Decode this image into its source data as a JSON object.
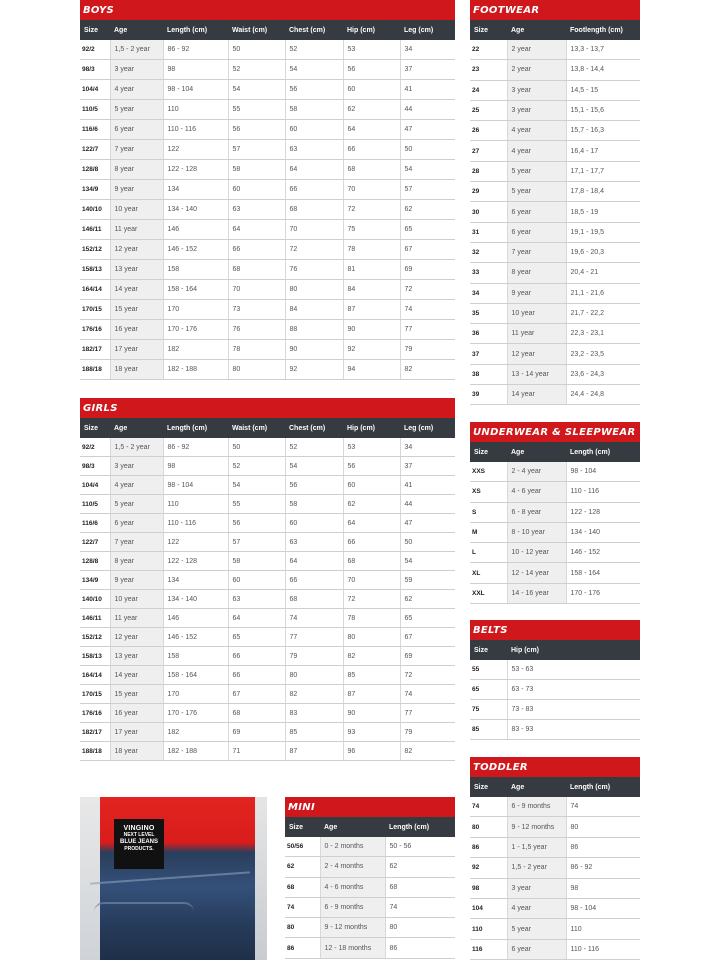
{
  "colors": {
    "title_bar": "#d0171b",
    "header_bar": "#353b40",
    "age_column": "#efefef"
  },
  "tables": {
    "boys": {
      "title": "BOYS",
      "headers": [
        "Size",
        "Age",
        "Length (cm)",
        "Waist (cm)",
        "Chest (cm)",
        "Hip (cm)",
        "Leg (cm)"
      ],
      "rows": [
        [
          "92/2",
          "1,5 - 2 year",
          "86 - 92",
          "50",
          "52",
          "53",
          "34"
        ],
        [
          "98/3",
          "3 year",
          "98",
          "52",
          "54",
          "56",
          "37"
        ],
        [
          "104/4",
          "4 year",
          "98 - 104",
          "54",
          "56",
          "60",
          "41"
        ],
        [
          "110/5",
          "5 year",
          "110",
          "55",
          "58",
          "62",
          "44"
        ],
        [
          "116/6",
          "6 year",
          "110 - 116",
          "56",
          "60",
          "64",
          "47"
        ],
        [
          "122/7",
          "7 year",
          "122",
          "57",
          "63",
          "66",
          "50"
        ],
        [
          "128/8",
          "8 year",
          "122 - 128",
          "58",
          "64",
          "68",
          "54"
        ],
        [
          "134/9",
          "9 year",
          "134",
          "60",
          "66",
          "70",
          "57"
        ],
        [
          "140/10",
          "10 year",
          "134 - 140",
          "63",
          "68",
          "72",
          "62"
        ],
        [
          "146/11",
          "11 year",
          "146",
          "64",
          "70",
          "75",
          "65"
        ],
        [
          "152/12",
          "12 year",
          "146 - 152",
          "66",
          "72",
          "78",
          "67"
        ],
        [
          "158/13",
          "13 year",
          "158",
          "68",
          "76",
          "81",
          "69"
        ],
        [
          "164/14",
          "14 year",
          "158 - 164",
          "70",
          "80",
          "84",
          "72"
        ],
        [
          "170/15",
          "15 year",
          "170",
          "73",
          "84",
          "87",
          "74"
        ],
        [
          "176/16",
          "16 year",
          "170 - 176",
          "76",
          "88",
          "90",
          "77"
        ],
        [
          "182/17",
          "17 year",
          "182",
          "78",
          "90",
          "92",
          "79"
        ],
        [
          "188/18",
          "18 year",
          "182 - 188",
          "80",
          "92",
          "94",
          "82"
        ]
      ]
    },
    "girls": {
      "title": "GIRLS",
      "headers": [
        "Size",
        "Age",
        "Length (cm)",
        "Waist (cm)",
        "Chest (cm)",
        "Hip (cm)",
        "Leg (cm)"
      ],
      "rows": [
        [
          "92/2",
          "1,5 - 2 year",
          "86 - 92",
          "50",
          "52",
          "53",
          "34"
        ],
        [
          "98/3",
          "3 year",
          "98",
          "52",
          "54",
          "56",
          "37"
        ],
        [
          "104/4",
          "4 year",
          "98 - 104",
          "54",
          "56",
          "60",
          "41"
        ],
        [
          "110/5",
          "5 year",
          "110",
          "55",
          "58",
          "62",
          "44"
        ],
        [
          "116/6",
          "6 year",
          "110 - 116",
          "56",
          "60",
          "64",
          "47"
        ],
        [
          "122/7",
          "7 year",
          "122",
          "57",
          "63",
          "66",
          "50"
        ],
        [
          "128/8",
          "8 year",
          "122 - 128",
          "58",
          "64",
          "68",
          "54"
        ],
        [
          "134/9",
          "9 year",
          "134",
          "60",
          "66",
          "70",
          "59"
        ],
        [
          "140/10",
          "10 year",
          "134 - 140",
          "63",
          "68",
          "72",
          "62"
        ],
        [
          "146/11",
          "11 year",
          "146",
          "64",
          "74",
          "78",
          "65"
        ],
        [
          "152/12",
          "12 year",
          "146 - 152",
          "65",
          "77",
          "80",
          "67"
        ],
        [
          "158/13",
          "13 year",
          "158",
          "66",
          "79",
          "82",
          "69"
        ],
        [
          "164/14",
          "14 year",
          "158 - 164",
          "66",
          "80",
          "85",
          "72"
        ],
        [
          "170/15",
          "15 year",
          "170",
          "67",
          "82",
          "87",
          "74"
        ],
        [
          "176/16",
          "16 year",
          "170 - 176",
          "68",
          "83",
          "90",
          "77"
        ],
        [
          "182/17",
          "17 year",
          "182",
          "69",
          "85",
          "93",
          "79"
        ],
        [
          "188/18",
          "18 year",
          "182 - 188",
          "71",
          "87",
          "96",
          "82"
        ]
      ]
    },
    "footwear": {
      "title": "FOOTWEAR",
      "headers": [
        "Size",
        "Age",
        "Footlength (cm)"
      ],
      "rows": [
        [
          "22",
          "2 year",
          "13,3 - 13,7"
        ],
        [
          "23",
          "2 year",
          "13,8 - 14,4"
        ],
        [
          "24",
          "3 year",
          "14,5 - 15"
        ],
        [
          "25",
          "3 year",
          "15,1 - 15,6"
        ],
        [
          "26",
          "4 year",
          "15,7 - 16,3"
        ],
        [
          "27",
          "4 year",
          "16,4 - 17"
        ],
        [
          "28",
          "5 year",
          "17,1 - 17,7"
        ],
        [
          "29",
          "5 year",
          "17,8 - 18,4"
        ],
        [
          "30",
          "6 year",
          "18,5 - 19"
        ],
        [
          "31",
          "6 year",
          "19,1 - 19,5"
        ],
        [
          "32",
          "7 year",
          "19,6 - 20,3"
        ],
        [
          "33",
          "8 year",
          "20,4 - 21"
        ],
        [
          "34",
          "9 year",
          "21,1 - 21,6"
        ],
        [
          "35",
          "10 year",
          "21,7 - 22,2"
        ],
        [
          "36",
          "11 year",
          "22,3 - 23,1"
        ],
        [
          "37",
          "12 year",
          "23,2 - 23,5"
        ],
        [
          "38",
          "13 - 14 year",
          "23,6 - 24,3"
        ],
        [
          "39",
          "14 year",
          "24,4 - 24,8"
        ]
      ]
    },
    "underwear": {
      "title": "UNDERWEAR & SLEEPWEAR",
      "headers": [
        "Size",
        "Age",
        "Length (cm)"
      ],
      "rows": [
        [
          "XXS",
          "2 - 4 year",
          "98 - 104"
        ],
        [
          "XS",
          "4 - 6 year",
          "110 - 116"
        ],
        [
          "S",
          "6 - 8 year",
          "122 - 128"
        ],
        [
          "M",
          "8 - 10 year",
          "134 - 140"
        ],
        [
          "L",
          "10 - 12 year",
          "146 - 152"
        ],
        [
          "XL",
          "12 - 14 year",
          "158 - 164"
        ],
        [
          "XXL",
          "14 - 16 year",
          "170 - 176"
        ]
      ]
    },
    "belts": {
      "title": "BELTS",
      "headers": [
        "Size",
        "Hip (cm)"
      ],
      "rows": [
        [
          "55",
          "53 - 63"
        ],
        [
          "65",
          "63 - 73"
        ],
        [
          "75",
          "73 - 83"
        ],
        [
          "85",
          "83 - 93"
        ]
      ]
    },
    "toddler": {
      "title": "TODDLER",
      "headers": [
        "Size",
        "Age",
        "Length (cm)"
      ],
      "rows": [
        [
          "74",
          "6 - 9 months",
          "74"
        ],
        [
          "80",
          "9 - 12 months",
          "80"
        ],
        [
          "86",
          "1 - 1,5 year",
          "86"
        ],
        [
          "92",
          "1,5 - 2 year",
          "86 - 92"
        ],
        [
          "98",
          "3 year",
          "98"
        ],
        [
          "104",
          "4 year",
          "98 - 104"
        ],
        [
          "110",
          "5 year",
          "110"
        ],
        [
          "116",
          "6 year",
          "110 - 116"
        ]
      ]
    },
    "mini": {
      "title": "MINI",
      "headers": [
        "Size",
        "Age",
        "Length (cm)"
      ],
      "rows": [
        [
          "50/56",
          "0 - 2 months",
          "50 - 56"
        ],
        [
          "62",
          "2 - 4 months",
          "62"
        ],
        [
          "68",
          "4 - 6 months",
          "68"
        ],
        [
          "74",
          "6 - 9 months",
          "74"
        ],
        [
          "80",
          "9 - 12 months",
          "80"
        ],
        [
          "86",
          "12 - 18 months",
          "86"
        ]
      ]
    }
  },
  "photo": {
    "brand": "VINGINO",
    "tagline": [
      "NEXT LEVEL",
      "BLUE JEANS",
      "PRODUCTS."
    ]
  }
}
